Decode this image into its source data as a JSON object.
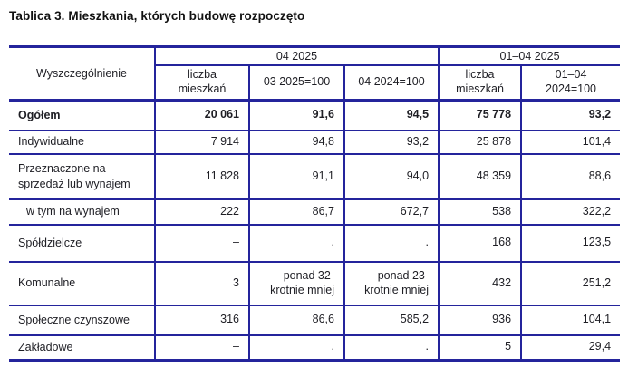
{
  "page": {
    "title": "Tablica 3. Mieszkania, których budowę rozpoczęto"
  },
  "colors": {
    "border": "#24249C",
    "text": "#1E1E24",
    "title": "#111111",
    "background": "#FFFFFF"
  },
  "table": {
    "stub_header": "Wyszczególnienie",
    "column_groups": [
      {
        "label": "04 2025",
        "span": 3
      },
      {
        "label": "01–04 2025",
        "span": 2
      }
    ],
    "sub_headers": [
      "liczba\nmieszkań",
      "03 2025=100",
      "04 2024=100",
      "liczba\nmieszkań",
      "01–04\n2024=100"
    ],
    "rows": [
      {
        "label": "Ogółem",
        "emphasis": "bold",
        "indent": false,
        "values": [
          "20 061",
          "91,6",
          "94,5",
          "75 778",
          "93,2"
        ]
      },
      {
        "label": "Indywidualne",
        "emphasis": "normal",
        "indent": false,
        "values": [
          "7 914",
          "94,8",
          "93,2",
          "25 878",
          "101,4"
        ]
      },
      {
        "label": "Przeznaczone na sprzedaż lub wynajem",
        "emphasis": "normal",
        "indent": false,
        "values": [
          "11 828",
          "91,1",
          "94,0",
          "48 359",
          "88,6"
        ]
      },
      {
        "label": "w tym na wynajem",
        "emphasis": "normal",
        "indent": true,
        "values": [
          "222",
          "86,7",
          "672,7",
          "538",
          "322,2"
        ]
      },
      {
        "label": "Spółdzielcze",
        "emphasis": "normal",
        "indent": false,
        "values": [
          "–",
          ".",
          ".",
          "168",
          "123,5"
        ]
      },
      {
        "label": "Komunalne",
        "emphasis": "normal",
        "indent": false,
        "values": [
          "3",
          "ponad 32-\nkrotnie mniej",
          "ponad 23-\nkrotnie mniej",
          "432",
          "251,2"
        ]
      },
      {
        "label": "Społeczne czynszowe",
        "emphasis": "normal",
        "indent": false,
        "values": [
          "316",
          "86,6",
          "585,2",
          "936",
          "104,1"
        ]
      },
      {
        "label": "Zakładowe",
        "emphasis": "normal",
        "indent": false,
        "values": [
          "–",
          ".",
          ".",
          "5",
          "29,4"
        ]
      }
    ]
  }
}
